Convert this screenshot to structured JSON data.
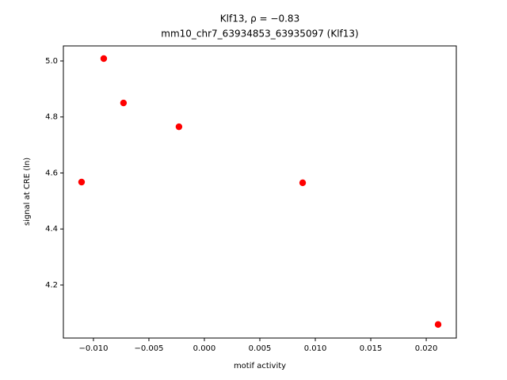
{
  "chart_data": {
    "type": "scatter",
    "title": "Klf13, ρ = −0.83",
    "subtitle": "mm10_chr7_63934853_63935097 (Klf13)",
    "x_label": "motif activity",
    "y_label": "signal at CRE (ln)",
    "color": "#ff0000",
    "x": [
      -0.01107,
      -0.00907,
      -0.00729,
      -0.00229,
      0.00886,
      0.02107
    ],
    "y": [
      4.5675,
      5.0085,
      4.85,
      4.765,
      4.565,
      4.059
    ],
    "xlim": [
      -0.01271,
      0.02271
    ],
    "ylim": [
      4.0106,
      5.0537
    ],
    "xticks": [
      {
        "value": -0.01,
        "label": "−0.010"
      },
      {
        "value": -0.005,
        "label": "−0.005"
      },
      {
        "value": 0,
        "label": "0.000"
      },
      0.005,
      {
        "value": 0.01,
        "label": "0.010"
      },
      0.015,
      {
        "value": 0.02,
        "label": "0.020"
      }
    ],
    "yticks": [
      4.2,
      4.4,
      4.6,
      4.8,
      {
        "value": 5,
        "label": "5.0"
      }
    ]
  }
}
